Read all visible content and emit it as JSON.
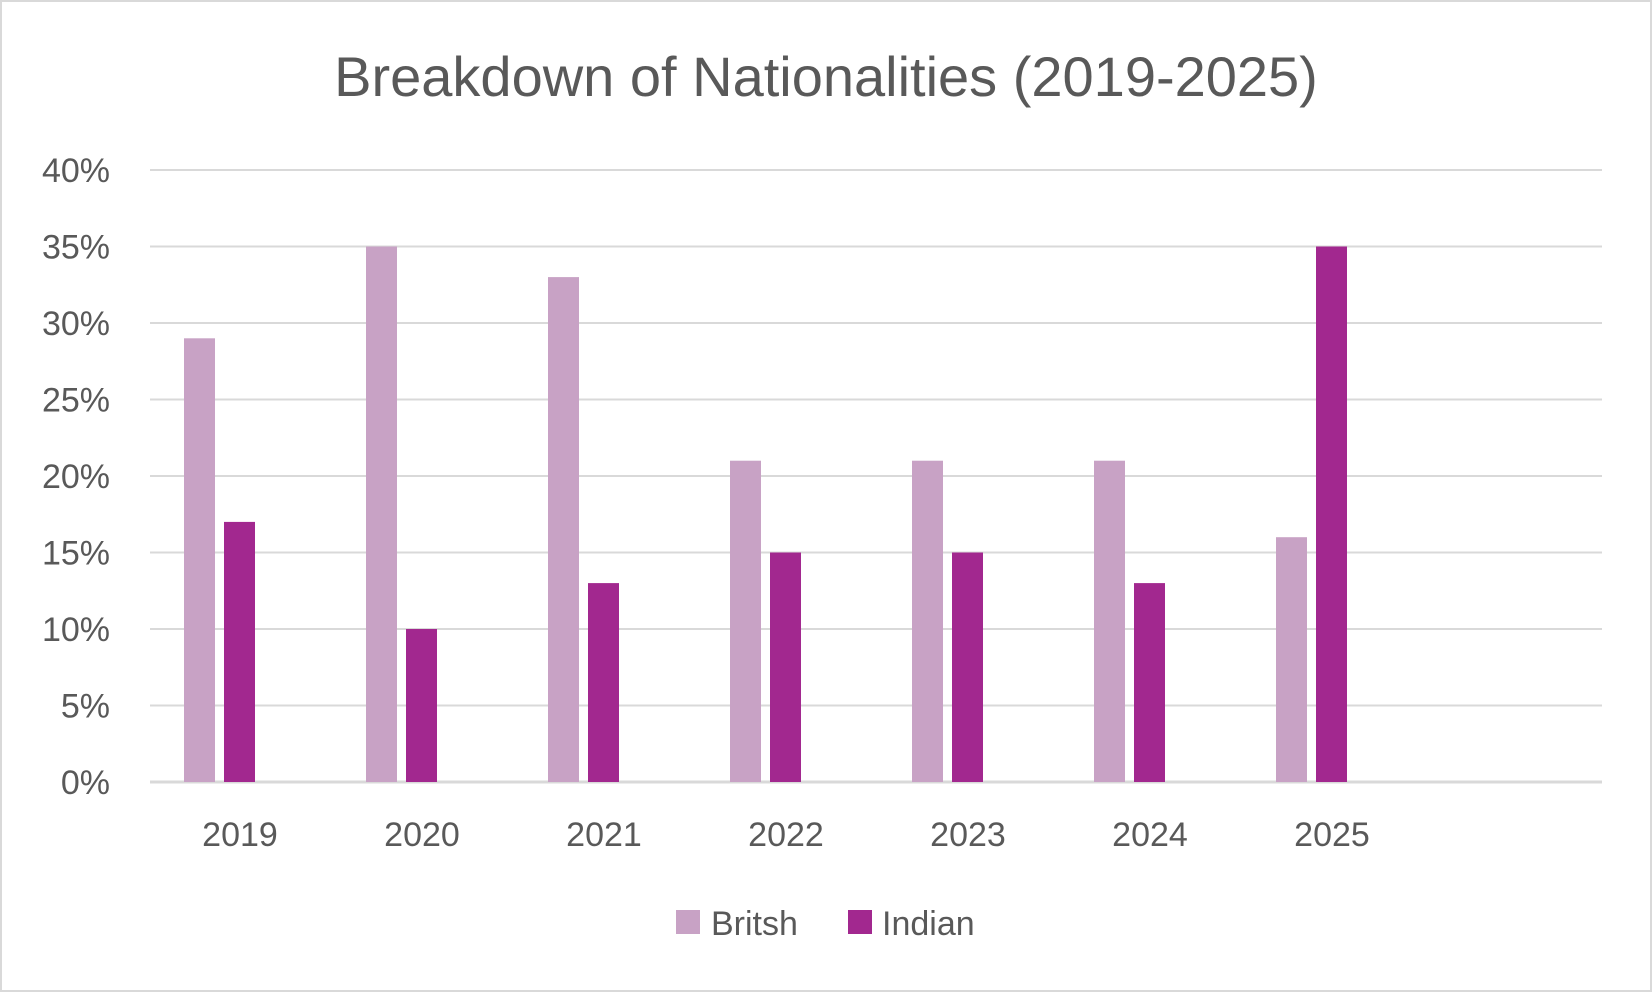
{
  "chart_data": {
    "type": "bar",
    "title": "Breakdown of Nationalities (2019-2025)",
    "xlabel": "",
    "ylabel": "",
    "categories": [
      "2019",
      "2020",
      "2021",
      "2022",
      "2023",
      "2024",
      "2025"
    ],
    "series": [
      {
        "name": "Britsh",
        "color": "#c8a2c5",
        "values": [
          29,
          35,
          33,
          21,
          21,
          21,
          16
        ]
      },
      {
        "name": "Indian",
        "color": "#a2288f",
        "values": [
          17,
          10,
          13,
          15,
          15,
          13,
          35
        ]
      }
    ],
    "ylim": [
      0,
      40
    ],
    "yticks": [
      0,
      5,
      10,
      15,
      20,
      25,
      30,
      35,
      40
    ],
    "ytick_labels": [
      "0%",
      "5%",
      "10%",
      "15%",
      "20%",
      "25%",
      "30%",
      "35%",
      "40%"
    ],
    "grid": true,
    "legend_position": "bottom-center",
    "colors": {
      "grid": "#d9d9d9",
      "text": "#595959",
      "frame": "#d9d9d9"
    }
  }
}
